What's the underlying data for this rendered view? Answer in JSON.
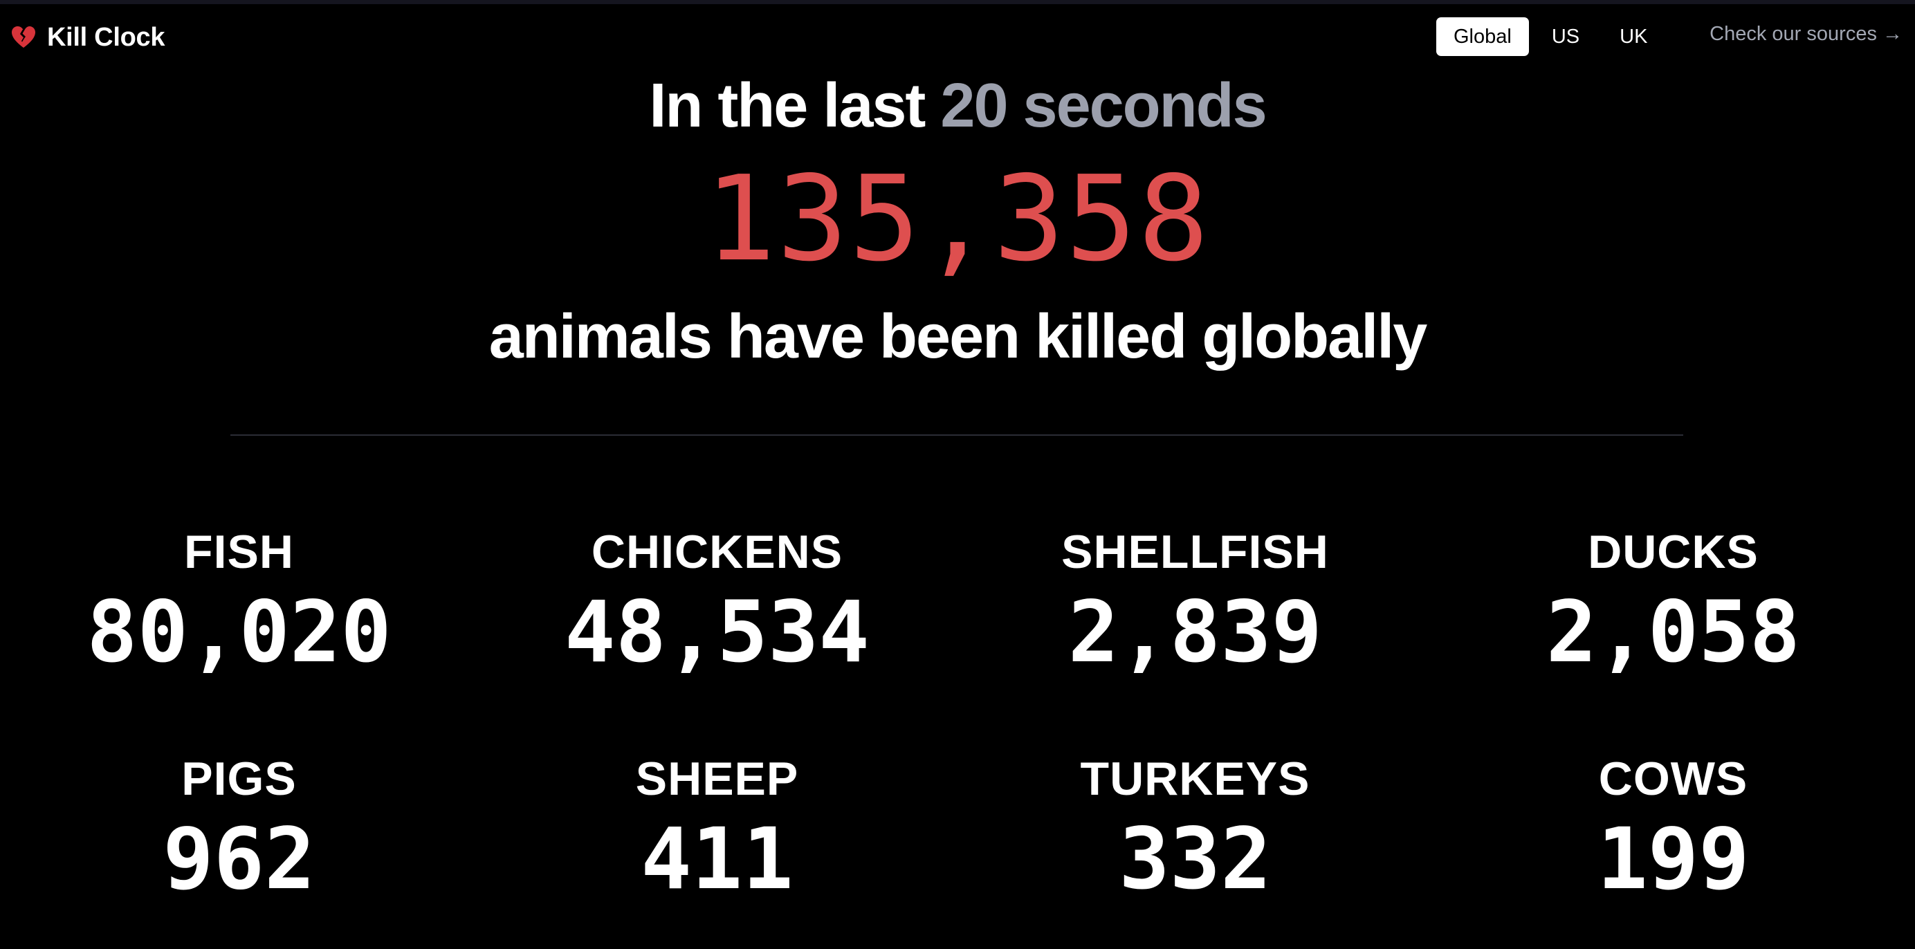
{
  "header": {
    "brand_name": "Kill Clock",
    "brand_icon": "broken-heart-icon",
    "nav": [
      {
        "label": "Global",
        "active": true
      },
      {
        "label": "US",
        "active": false
      },
      {
        "label": "UK",
        "active": false
      }
    ],
    "sources_link": "Check our sources →"
  },
  "hero": {
    "prefix": "In the last ",
    "duration": "20 seconds",
    "total": "135,358",
    "suffix": "animals have been killed globally"
  },
  "colors": {
    "background": "#000000",
    "accent_red": "#de4f4f",
    "muted_gray": "#9ca0ad",
    "heart_red": "#d8343b"
  },
  "animals": [
    {
      "name": "FISH",
      "count": "80,020"
    },
    {
      "name": "CHICKENS",
      "count": "48,534"
    },
    {
      "name": "SHELLFISH",
      "count": "2,839"
    },
    {
      "name": "DUCKS",
      "count": "2,058"
    },
    {
      "name": "PIGS",
      "count": "962"
    },
    {
      "name": "SHEEP",
      "count": "411"
    },
    {
      "name": "TURKEYS",
      "count": "332"
    },
    {
      "name": "COWS",
      "count": "199"
    }
  ]
}
